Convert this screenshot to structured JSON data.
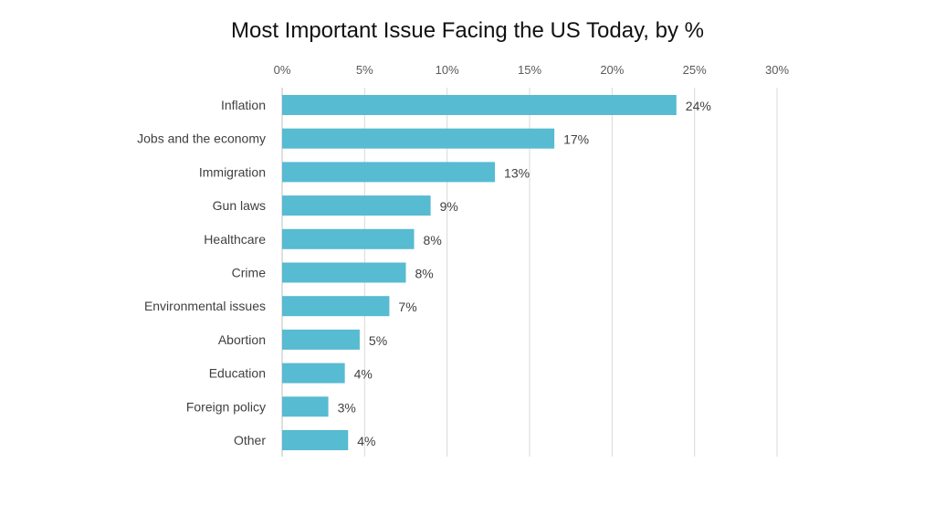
{
  "chart_data": {
    "type": "bar",
    "orientation": "horizontal",
    "title": "Most Important Issue Facing the US Today, by %",
    "categories": [
      "Inflation",
      "Jobs and the economy",
      "Immigration",
      "Gun laws",
      "Healthcare",
      "Crime",
      "Environmental issues",
      "Abortion",
      "Education",
      "Foreign policy",
      "Other"
    ],
    "values": [
      23.9,
      16.5,
      12.9,
      9.0,
      8.0,
      7.5,
      6.5,
      4.7,
      3.8,
      2.8,
      4.0
    ],
    "value_labels": [
      "24%",
      "17%",
      "13%",
      "9%",
      "8%",
      "8%",
      "7%",
      "5%",
      "4%",
      "3%",
      "4%"
    ],
    "xlim": [
      0,
      30
    ],
    "x_ticks": [
      0,
      5,
      10,
      15,
      20,
      25,
      30
    ],
    "x_tick_labels": [
      "0%",
      "5%",
      "10%",
      "15%",
      "20%",
      "25%",
      "30%"
    ],
    "x_axis_position": "top",
    "grid": true,
    "bar_color": "#57BBD1",
    "grid_color": "#D9D9D9",
    "label_color": "#404040"
  }
}
